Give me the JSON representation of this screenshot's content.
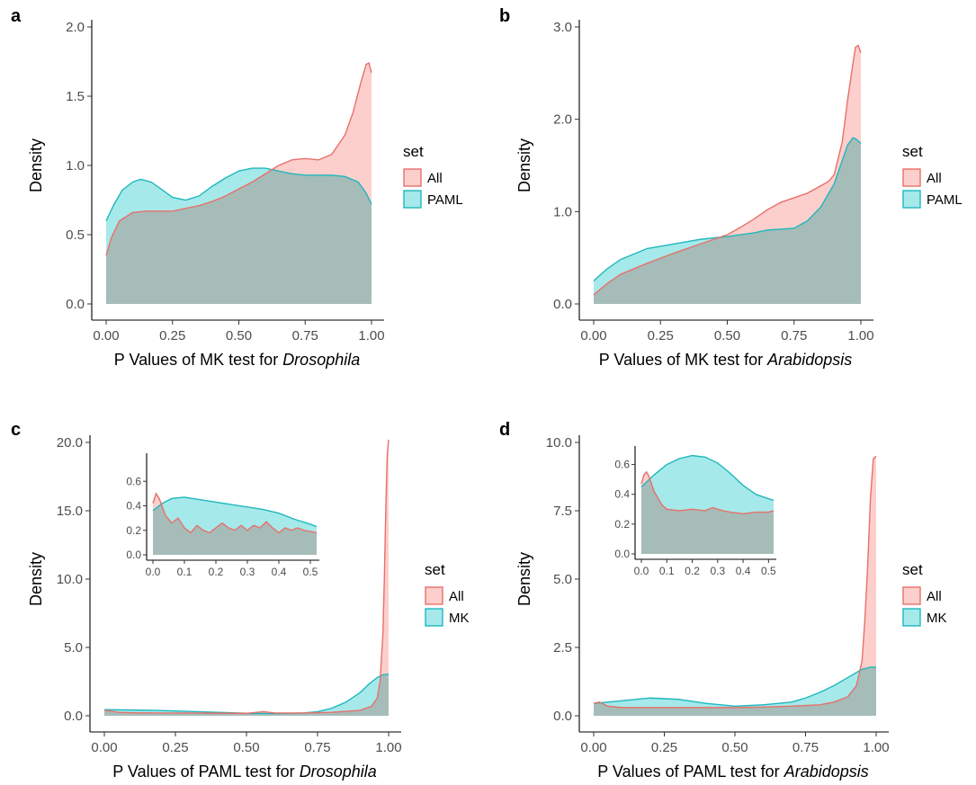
{
  "colors": {
    "all_fill": "#f8766d",
    "all_line": "#e8706a",
    "second_fill": "#00bfc4",
    "second_line": "#1fb8bd",
    "overlap": "#a6bcb9"
  },
  "chart_data": [
    {
      "id": "a",
      "panel_label": "a",
      "type": "area",
      "xlabel_prefix": "P Values of MK test for ",
      "xlabel_italic": "Drosophila",
      "ylabel": "Density",
      "xlim": [
        0,
        1
      ],
      "ylim": [
        0,
        2.0
      ],
      "x_ticks": [
        0,
        0.25,
        0.5,
        0.75,
        1.0
      ],
      "x_tick_labels": [
        "0.00",
        "0.25",
        "0.50",
        "0.75",
        "1.00"
      ],
      "y_ticks": [
        0,
        0.5,
        1.0,
        1.5,
        2.0
      ],
      "y_tick_labels": [
        "0.0",
        "0.5",
        "1.0",
        "1.5",
        "2.0"
      ],
      "legend": {
        "title": "set",
        "labels": [
          "All",
          "PAML"
        ]
      },
      "series": [
        {
          "name": "All",
          "x": [
            0,
            0.02,
            0.05,
            0.1,
            0.15,
            0.2,
            0.25,
            0.3,
            0.35,
            0.4,
            0.45,
            0.5,
            0.55,
            0.6,
            0.65,
            0.7,
            0.75,
            0.8,
            0.85,
            0.9,
            0.93,
            0.96,
            0.98,
            0.99,
            1.0
          ],
          "y": [
            0.35,
            0.48,
            0.6,
            0.66,
            0.67,
            0.67,
            0.67,
            0.69,
            0.71,
            0.74,
            0.78,
            0.83,
            0.88,
            0.94,
            1.0,
            1.04,
            1.05,
            1.04,
            1.08,
            1.22,
            1.38,
            1.6,
            1.73,
            1.74,
            1.67
          ]
        },
        {
          "name": "PAML",
          "x": [
            0,
            0.03,
            0.06,
            0.1,
            0.13,
            0.17,
            0.2,
            0.25,
            0.3,
            0.35,
            0.4,
            0.45,
            0.5,
            0.55,
            0.6,
            0.65,
            0.7,
            0.75,
            0.8,
            0.85,
            0.9,
            0.95,
            0.98,
            1.0
          ],
          "y": [
            0.6,
            0.72,
            0.82,
            0.88,
            0.9,
            0.88,
            0.84,
            0.77,
            0.75,
            0.78,
            0.85,
            0.91,
            0.96,
            0.98,
            0.98,
            0.96,
            0.94,
            0.93,
            0.93,
            0.93,
            0.92,
            0.88,
            0.8,
            0.72
          ]
        }
      ]
    },
    {
      "id": "b",
      "panel_label": "b",
      "type": "area",
      "xlabel_prefix": "P Values of MK test for ",
      "xlabel_italic": "Arabidopsis",
      "ylabel": "Density",
      "xlim": [
        0,
        1
      ],
      "ylim": [
        0,
        3.0
      ],
      "x_ticks": [
        0,
        0.25,
        0.5,
        0.75,
        1.0
      ],
      "x_tick_labels": [
        "0.00",
        "0.25",
        "0.50",
        "0.75",
        "1.00"
      ],
      "y_ticks": [
        0,
        1.0,
        2.0,
        3.0
      ],
      "y_tick_labels": [
        "0.0",
        "1.0",
        "2.0",
        "3.0"
      ],
      "legend": {
        "title": "set",
        "labels": [
          "All",
          "PAML"
        ]
      },
      "series": [
        {
          "name": "All",
          "x": [
            0,
            0.05,
            0.1,
            0.2,
            0.3,
            0.4,
            0.5,
            0.55,
            0.6,
            0.65,
            0.7,
            0.75,
            0.8,
            0.85,
            0.88,
            0.9,
            0.93,
            0.95,
            0.97,
            0.98,
            0.99,
            1.0
          ],
          "y": [
            0.1,
            0.22,
            0.32,
            0.44,
            0.55,
            0.65,
            0.75,
            0.83,
            0.92,
            1.02,
            1.1,
            1.15,
            1.2,
            1.28,
            1.33,
            1.4,
            1.75,
            2.2,
            2.6,
            2.78,
            2.8,
            2.72
          ]
        },
        {
          "name": "PAML",
          "x": [
            0,
            0.05,
            0.1,
            0.2,
            0.3,
            0.4,
            0.5,
            0.6,
            0.65,
            0.7,
            0.75,
            0.8,
            0.85,
            0.9,
            0.93,
            0.95,
            0.97,
            0.98,
            1.0
          ],
          "y": [
            0.25,
            0.38,
            0.48,
            0.6,
            0.65,
            0.7,
            0.73,
            0.77,
            0.8,
            0.81,
            0.82,
            0.9,
            1.05,
            1.3,
            1.55,
            1.72,
            1.8,
            1.79,
            1.74
          ]
        }
      ]
    },
    {
      "id": "c",
      "panel_label": "c",
      "type": "area",
      "xlabel_prefix": "P Values of PAML test for ",
      "xlabel_italic": "Drosophila",
      "ylabel": "Density",
      "xlim": [
        0,
        1
      ],
      "ylim": [
        0,
        20.0
      ],
      "x_ticks": [
        0,
        0.25,
        0.5,
        0.75,
        1.0
      ],
      "x_tick_labels": [
        "0.00",
        "0.25",
        "0.50",
        "0.75",
        "1.00"
      ],
      "y_ticks": [
        0,
        5,
        10,
        15,
        20
      ],
      "y_tick_labels": [
        "0.0",
        "5.0",
        "10.0",
        "15.0",
        "20.0"
      ],
      "legend": {
        "title": "set",
        "labels": [
          "All",
          "MK"
        ]
      },
      "series": [
        {
          "name": "All",
          "x": [
            0,
            0.02,
            0.05,
            0.1,
            0.2,
            0.3,
            0.4,
            0.5,
            0.56,
            0.6,
            0.7,
            0.8,
            0.9,
            0.94,
            0.96,
            0.97,
            0.98,
            0.985,
            0.99,
            0.995,
            1.0
          ],
          "y": [
            0.4,
            0.35,
            0.25,
            0.22,
            0.2,
            0.2,
            0.18,
            0.18,
            0.3,
            0.2,
            0.2,
            0.25,
            0.4,
            0.7,
            1.3,
            2.5,
            6.0,
            10.0,
            15.0,
            19.0,
            20.2
          ]
        },
        {
          "name": "MK",
          "x": [
            0,
            0.1,
            0.2,
            0.3,
            0.4,
            0.5,
            0.6,
            0.7,
            0.75,
            0.8,
            0.85,
            0.9,
            0.93,
            0.96,
            0.98,
            1.0
          ],
          "y": [
            0.45,
            0.42,
            0.38,
            0.32,
            0.25,
            0.18,
            0.16,
            0.2,
            0.3,
            0.55,
            1.0,
            1.7,
            2.3,
            2.8,
            3.0,
            3.05
          ]
        }
      ],
      "inset": {
        "xlim": [
          0,
          0.52
        ],
        "ylim": [
          0,
          0.8
        ],
        "x_ticks": [
          0,
          0.1,
          0.2,
          0.3,
          0.4,
          0.5
        ],
        "x_tick_labels": [
          "0.0",
          "0.1",
          "0.2",
          "0.3",
          "0.4",
          "0.5"
        ],
        "y_ticks": [
          0,
          0.2,
          0.4,
          0.6
        ],
        "y_tick_labels": [
          "0.0",
          "0.2",
          "0.4",
          "0.6"
        ],
        "series": [
          {
            "name": "All",
            "x": [
              0,
              0.01,
              0.02,
              0.04,
              0.06,
              0.08,
              0.1,
              0.12,
              0.14,
              0.16,
              0.18,
              0.2,
              0.22,
              0.24,
              0.26,
              0.28,
              0.3,
              0.32,
              0.34,
              0.36,
              0.38,
              0.4,
              0.42,
              0.44,
              0.46,
              0.48,
              0.5,
              0.52
            ],
            "y": [
              0.42,
              0.5,
              0.46,
              0.32,
              0.26,
              0.3,
              0.22,
              0.18,
              0.24,
              0.2,
              0.18,
              0.22,
              0.26,
              0.22,
              0.2,
              0.24,
              0.2,
              0.24,
              0.22,
              0.27,
              0.22,
              0.18,
              0.22,
              0.2,
              0.22,
              0.2,
              0.19,
              0.18
            ]
          },
          {
            "name": "MK",
            "x": [
              0,
              0.03,
              0.06,
              0.1,
              0.15,
              0.2,
              0.25,
              0.3,
              0.35,
              0.4,
              0.45,
              0.5,
              0.52
            ],
            "y": [
              0.36,
              0.42,
              0.46,
              0.47,
              0.45,
              0.43,
              0.41,
              0.39,
              0.37,
              0.34,
              0.29,
              0.25,
              0.23
            ]
          }
        ]
      }
    },
    {
      "id": "d",
      "panel_label": "d",
      "type": "area",
      "xlabel_prefix": "P Values of PAML test for ",
      "xlabel_italic": "Arabidopsis",
      "ylabel": "Density",
      "xlim": [
        0,
        1
      ],
      "ylim": [
        0,
        10.0
      ],
      "x_ticks": [
        0,
        0.25,
        0.5,
        0.75,
        1.0
      ],
      "x_tick_labels": [
        "0.00",
        "0.25",
        "0.50",
        "0.75",
        "1.00"
      ],
      "y_ticks": [
        0,
        2.5,
        5,
        7.5,
        10
      ],
      "y_tick_labels": [
        "0.0",
        "2.5",
        "5.0",
        "7.5",
        "10.0"
      ],
      "legend": {
        "title": "set",
        "labels": [
          "All",
          "MK"
        ]
      },
      "series": [
        {
          "name": "All",
          "x": [
            0,
            0.02,
            0.05,
            0.1,
            0.2,
            0.3,
            0.4,
            0.5,
            0.6,
            0.7,
            0.8,
            0.85,
            0.9,
            0.93,
            0.95,
            0.96,
            0.97,
            0.98,
            0.99,
            1.0
          ],
          "y": [
            0.45,
            0.5,
            0.35,
            0.3,
            0.3,
            0.3,
            0.3,
            0.3,
            0.32,
            0.35,
            0.4,
            0.5,
            0.7,
            1.1,
            2.0,
            3.5,
            5.5,
            8.0,
            9.4,
            9.5
          ]
        },
        {
          "name": "MK",
          "x": [
            0,
            0.1,
            0.2,
            0.3,
            0.4,
            0.5,
            0.6,
            0.7,
            0.75,
            0.8,
            0.85,
            0.9,
            0.95,
            0.98,
            1.0
          ],
          "y": [
            0.45,
            0.55,
            0.65,
            0.6,
            0.45,
            0.35,
            0.4,
            0.5,
            0.65,
            0.85,
            1.1,
            1.4,
            1.7,
            1.78,
            1.78
          ]
        }
      ],
      "inset": {
        "xlim": [
          0,
          0.52
        ],
        "ylim": [
          0,
          0.7
        ],
        "x_ticks": [
          0,
          0.1,
          0.2,
          0.3,
          0.4,
          0.5
        ],
        "x_tick_labels": [
          "0.0",
          "0.1",
          "0.2",
          "0.3",
          "0.4",
          "0.5"
        ],
        "y_ticks": [
          0,
          0.2,
          0.4,
          0.6
        ],
        "y_tick_labels": [
          "0.0",
          "0.2",
          "0.4",
          "0.6"
        ],
        "series": [
          {
            "name": "All",
            "x": [
              0,
              0.01,
              0.02,
              0.03,
              0.05,
              0.08,
              0.1,
              0.15,
              0.2,
              0.25,
              0.28,
              0.32,
              0.35,
              0.4,
              0.45,
              0.5,
              0.52
            ],
            "y": [
              0.47,
              0.53,
              0.55,
              0.52,
              0.42,
              0.33,
              0.3,
              0.29,
              0.3,
              0.29,
              0.31,
              0.29,
              0.28,
              0.27,
              0.28,
              0.28,
              0.29
            ]
          },
          {
            "name": "MK",
            "x": [
              0,
              0.05,
              0.1,
              0.15,
              0.2,
              0.25,
              0.3,
              0.35,
              0.4,
              0.45,
              0.5,
              0.52
            ],
            "y": [
              0.45,
              0.53,
              0.6,
              0.64,
              0.66,
              0.65,
              0.61,
              0.54,
              0.46,
              0.4,
              0.37,
              0.36
            ]
          }
        ]
      }
    }
  ]
}
